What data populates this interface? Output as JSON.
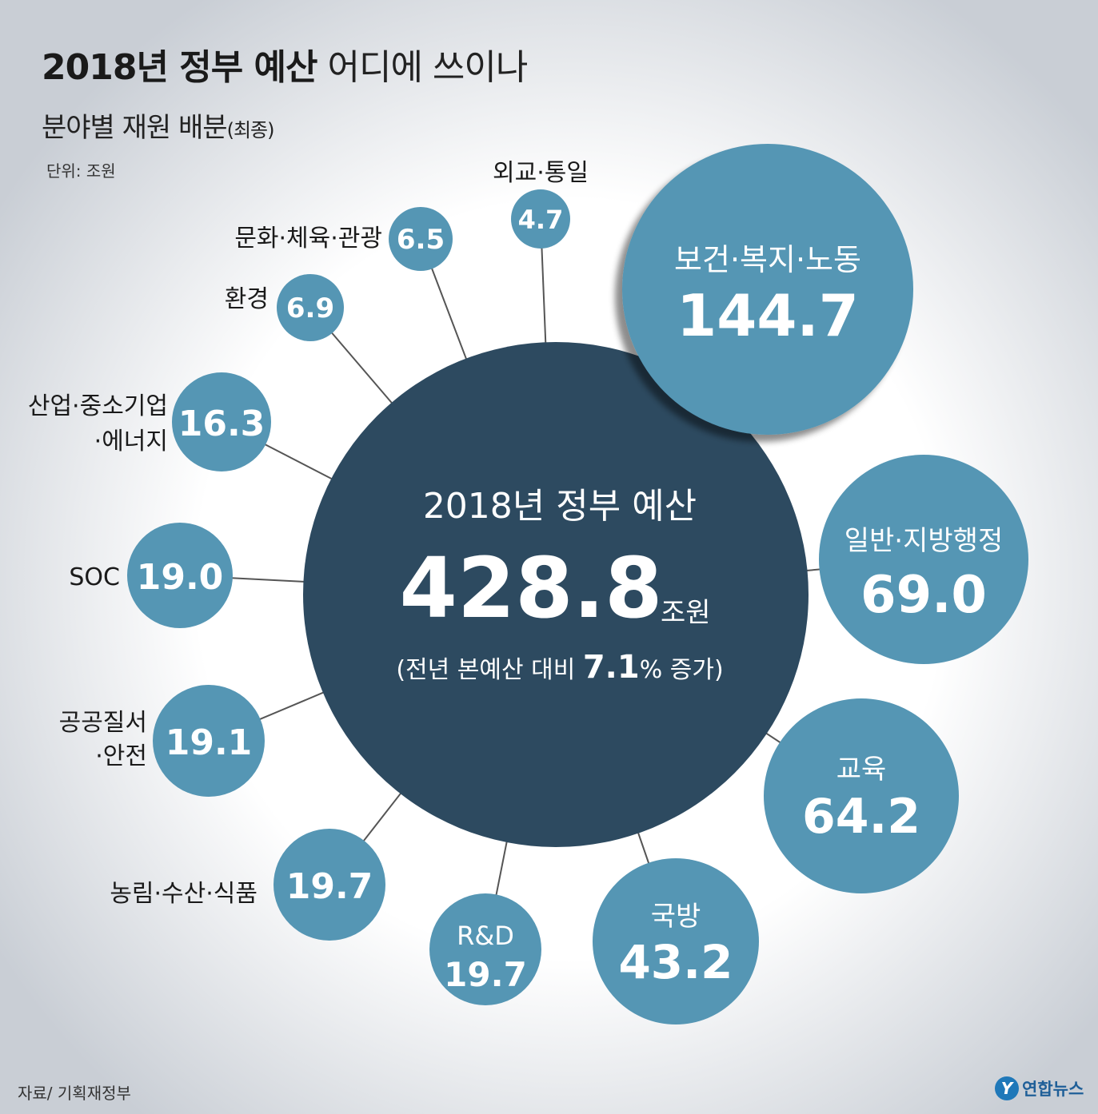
{
  "header": {
    "title_bold": "2018년 정부 예산",
    "title_rest": "어디에 쓰이나",
    "subtitle": "분야별 재원 배분",
    "subtitle_note": "(최종)",
    "unit": "단위: 조원"
  },
  "center": {
    "label": "2018년 정부 예산",
    "value": "428.8",
    "unit": "조원",
    "growth_prefix": "(전년 본예산 대비 ",
    "growth_value": "7.1",
    "growth_suffix": "% 증가)"
  },
  "footer": {
    "source": "자료/ 기획재정부",
    "brand_mark": "Y",
    "brand": "연합뉴스"
  },
  "colors": {
    "center": "#2d4a60",
    "bubble": "#5596b4",
    "bubble_text": "#ffffff",
    "connector": "#555555",
    "background_edge": "#cfd3d9"
  },
  "chart_data": {
    "type": "bubble",
    "title": "2018년 정부 예산 어디에 쓰이나",
    "subtitle": "분야별 재원 배분 (최종)",
    "unit": "조원",
    "total": 428.8,
    "categories": [
      "보건·복지·노동",
      "일반·지방행정",
      "교육",
      "국방",
      "R&D",
      "농림·수산·식품",
      "공공질서·안전",
      "SOC",
      "산업·중소기업·에너지",
      "환경",
      "문화·체육·관광",
      "외교·통일"
    ],
    "values": [
      144.7,
      69.0,
      64.2,
      43.2,
      19.7,
      19.7,
      19.1,
      19.0,
      16.3,
      6.9,
      6.5,
      4.7
    ],
    "bubbles": [
      {
        "label": [
          "보건·복지·노동"
        ],
        "value": "144.7",
        "label_inside": true
      },
      {
        "label": [
          "일반·지방행정"
        ],
        "value": "69.0",
        "label_inside": true
      },
      {
        "label": [
          "교육"
        ],
        "value": "64.2",
        "label_inside": true
      },
      {
        "label": [
          "국방"
        ],
        "value": "43.2",
        "label_inside": true
      },
      {
        "label": [
          "R&D"
        ],
        "value": "19.7",
        "label_inside": true
      },
      {
        "label": [
          "농림·수산·식품"
        ],
        "value": "19.7",
        "label_inside": false
      },
      {
        "label": [
          "공공질서",
          "·안전"
        ],
        "value": "19.1",
        "label_inside": false
      },
      {
        "label": [
          "SOC"
        ],
        "value": "19.0",
        "label_inside": false
      },
      {
        "label": [
          "산업·중소기업",
          "·에너지"
        ],
        "value": "16.3",
        "label_inside": false
      },
      {
        "label": [
          "환경"
        ],
        "value": "6.9",
        "label_inside": false
      },
      {
        "label": [
          "문화·체육·관광"
        ],
        "value": "6.5",
        "label_inside": false
      },
      {
        "label": [
          "외교·통일"
        ],
        "value": "4.7",
        "label_inside": false
      }
    ]
  }
}
